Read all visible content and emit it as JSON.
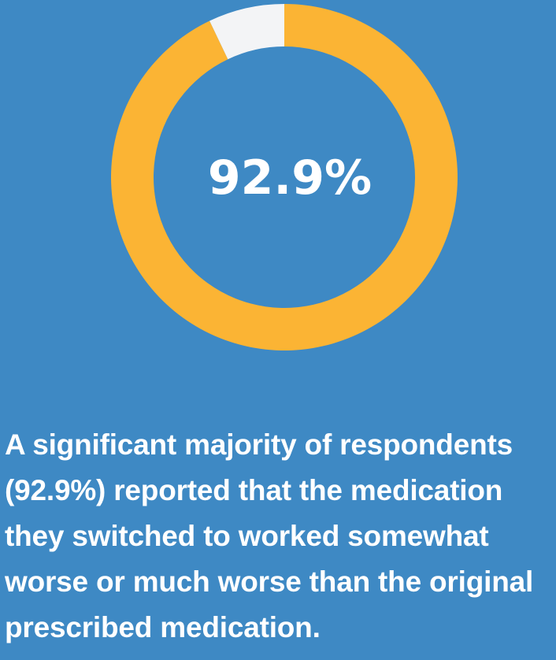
{
  "chart_data": {
    "type": "pie",
    "donut": true,
    "slices": [
      {
        "value": 92.9,
        "color": "#fbb434"
      },
      {
        "value": 7.1,
        "color": "#f3f4f6"
      }
    ],
    "center_label": "92.9%",
    "colors": {
      "background": "#3e89c4",
      "center_text": "#ffffff"
    }
  },
  "caption": {
    "text": "A significant majority of respondents (92.9%) reported that the medication they switched to worked somewhat worse or much worse than the original prescribed medication."
  }
}
